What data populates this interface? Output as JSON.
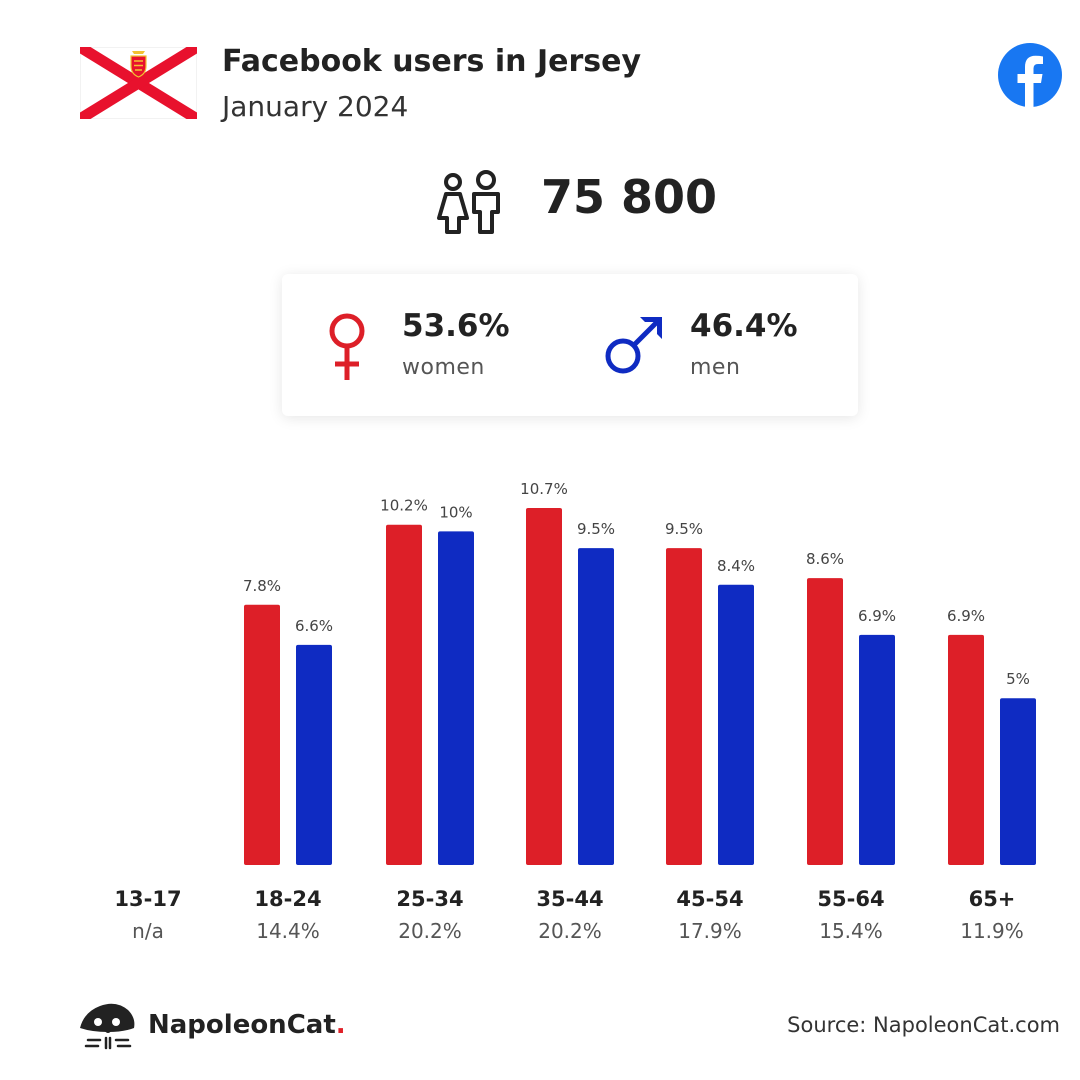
{
  "header": {
    "title": "Facebook users in Jersey",
    "subtitle": "January 2024"
  },
  "total_users": "75 800",
  "gender": {
    "women": {
      "percent": "53.6%",
      "label": "women"
    },
    "men": {
      "percent": "46.4%",
      "label": "men"
    }
  },
  "colors": {
    "women": "#dd1f28",
    "men": "#0f2bc2",
    "facebook": "#1877f2",
    "flag_saltire": "#e8112d"
  },
  "icons": [
    "jersey-flag",
    "facebook-icon",
    "people-icon",
    "female-icon",
    "male-icon",
    "napoleoncat-logo"
  ],
  "chart_data": {
    "type": "bar",
    "categories": [
      "13-17",
      "18-24",
      "25-34",
      "35-44",
      "45-54",
      "55-64",
      "65+"
    ],
    "category_totals": [
      "n/a",
      "14.4%",
      "20.2%",
      "20.2%",
      "17.9%",
      "15.4%",
      "11.9%"
    ],
    "series": [
      {
        "name": "women",
        "values": [
          null,
          7.8,
          10.2,
          10.7,
          9.5,
          8.6,
          6.9
        ]
      },
      {
        "name": "men",
        "values": [
          null,
          6.6,
          10,
          9.5,
          8.4,
          6.9,
          5
        ]
      }
    ],
    "value_labels": [
      [
        null,
        "7.8%",
        "10.2%",
        "10.7%",
        "9.5%",
        "8.6%",
        "6.9%"
      ],
      [
        null,
        "6.6%",
        "10%",
        "9.5%",
        "8.4%",
        "6.9%",
        "5%"
      ]
    ],
    "ylim": [
      0,
      12.5
    ],
    "grid": false
  },
  "footer": {
    "brand_name": "NapoleonCat",
    "brand_dot": ".",
    "source": "Source: NapoleonCat.com"
  }
}
